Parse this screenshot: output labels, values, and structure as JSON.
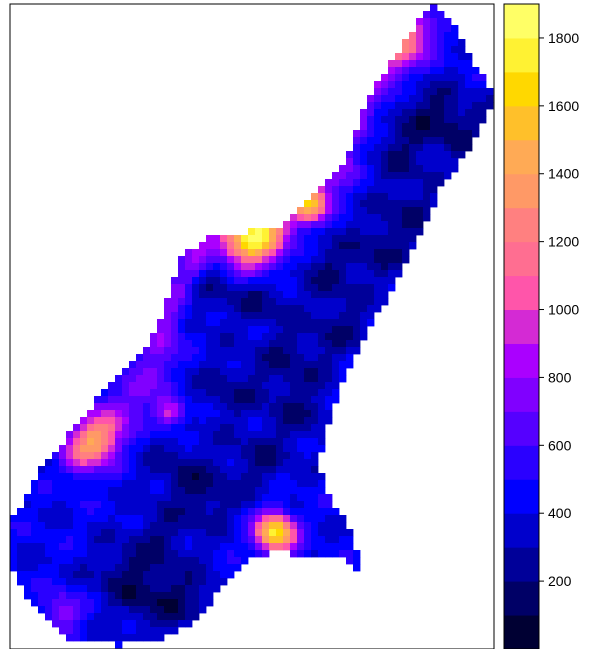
{
  "chart_data": {
    "type": "heatmap",
    "title": "",
    "xlabel": "",
    "ylabel": "",
    "grid": false,
    "legend": "right",
    "colorbar": {
      "min": 0,
      "max": 1900,
      "step": 100,
      "tick_values": [
        200,
        400,
        600,
        800,
        1000,
        1200,
        1400,
        1600,
        1800
      ],
      "tick_labels": [
        "200",
        "400",
        "600",
        "800",
        "1000",
        "1200",
        "1400",
        "1600",
        "1800"
      ],
      "colors": [
        "#000033",
        "#000066",
        "#000099",
        "#0000CC",
        "#0000FF",
        "#2A00FF",
        "#5500FF",
        "#8000FF",
        "#AA00FF",
        "#D42AD4",
        "#FF55AA",
        "#FF6E91",
        "#FF8080",
        "#FF9966",
        "#FFAA55",
        "#FFC02A",
        "#FFD800",
        "#FFF233",
        "#FFFF66"
      ]
    },
    "field": {
      "description_of_values": "interpolated surface values, mostly 300-500 in interior, higher along northwest edge, hotspots near 1600-1800",
      "background_value": 420,
      "hotspots": [
        {
          "value": 1750
        },
        {
          "value": 1500
        },
        {
          "value": 1250
        },
        {
          "value": 1100
        },
        {
          "value": 1000
        },
        {
          "value": 900
        },
        {
          "value": 800
        }
      ]
    }
  }
}
